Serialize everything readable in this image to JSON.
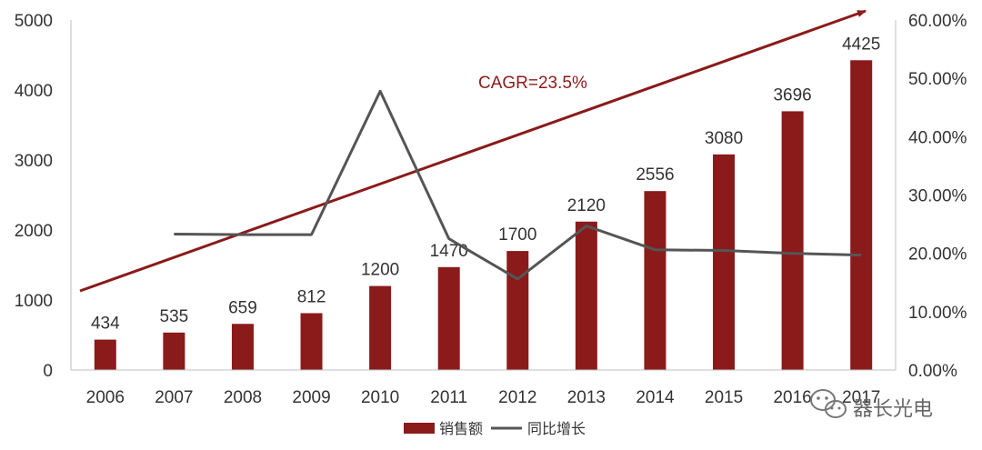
{
  "chart_data": {
    "type": "bar",
    "categories": [
      "2006",
      "2007",
      "2008",
      "2009",
      "2010",
      "2011",
      "2012",
      "2013",
      "2014",
      "2015",
      "2016",
      "2017"
    ],
    "series": [
      {
        "name": "销售额",
        "type": "bar",
        "axis": "left",
        "color": "#8b1a1a",
        "values": [
          434,
          535,
          659,
          812,
          1200,
          1470,
          1700,
          2120,
          2556,
          3080,
          3696,
          4425
        ],
        "labels": [
          "434",
          "535",
          "659",
          "812",
          "1200",
          "1470",
          "1700",
          "2120",
          "2556",
          "3080",
          "3696",
          "4425"
        ]
      },
      {
        "name": "同比增长",
        "type": "line",
        "axis": "right",
        "color": "#555555",
        "values": [
          null,
          23.3,
          23.2,
          23.2,
          47.8,
          22.5,
          15.6,
          24.7,
          20.6,
          20.5,
          20.0,
          19.7
        ]
      }
    ],
    "ylim": [
      0,
      5000
    ],
    "yticks": [
      "0",
      "1000",
      "2000",
      "3000",
      "4000",
      "5000"
    ],
    "y2lim": [
      0,
      60
    ],
    "y2ticks": [
      "0.00%",
      "10.00%",
      "20.00%",
      "30.00%",
      "40.00%",
      "50.00%",
      "60.00%"
    ],
    "trend": {
      "label": "CAGR=23.5%",
      "color": "#8b1a1a"
    },
    "legend_position": "bottom",
    "grid": false
  },
  "watermark": {
    "text": "器长光电",
    "icon": "wechat-icon"
  }
}
